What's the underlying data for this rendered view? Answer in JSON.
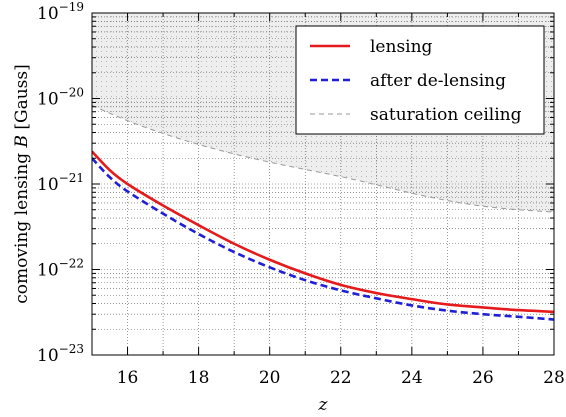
{
  "chart_data": {
    "type": "line",
    "title": "",
    "xlabel": "z",
    "ylabel": "comoving lensing B [Gauss]",
    "ylabel_parts": {
      "before": "comoving lensing ",
      "var": "B",
      "after": " [Gauss]"
    },
    "xlim": [
      15,
      28
    ],
    "ylim": [
      1e-23,
      1e-19
    ],
    "yscale": "log",
    "grid": true,
    "legend_position": "top-right",
    "x_ticks": [
      "16",
      "18",
      "20",
      "22",
      "24",
      "26",
      "28"
    ],
    "y_ticks": [
      {
        "base": "10",
        "exp": "−19",
        "value": 1e-19
      },
      {
        "base": "10",
        "exp": "−20",
        "value": 1e-20
      },
      {
        "base": "10",
        "exp": "−21",
        "value": 1e-21
      },
      {
        "base": "10",
        "exp": "−22",
        "value": 1e-22
      },
      {
        "base": "10",
        "exp": "−23",
        "value": 1e-23
      }
    ],
    "series": [
      {
        "name": "lensing",
        "color": "#e41a1c",
        "style": "solid",
        "x": [
          15,
          15.5,
          16,
          17,
          18,
          19,
          20,
          21,
          22,
          23,
          24,
          25,
          26,
          27,
          28
        ],
        "y": [
          2.4e-21,
          1.45e-21,
          1e-21,
          5.6e-22,
          3.3e-22,
          2e-22,
          1.3e-22,
          9e-23,
          6.6e-23,
          5.3e-23,
          4.5e-23,
          3.9e-23,
          3.6e-23,
          3.35e-23,
          3.2e-23
        ]
      },
      {
        "name": "after de-lensing",
        "color": "#1f1fd6",
        "style": "dashed",
        "x": [
          15,
          15.5,
          16,
          17,
          18,
          19,
          20,
          21,
          22,
          23,
          24,
          25,
          26,
          27,
          28
        ],
        "y": [
          2e-21,
          1.2e-21,
          8.2e-22,
          4.5e-22,
          2.6e-22,
          1.6e-22,
          1.06e-22,
          7.5e-23,
          5.7e-23,
          4.6e-23,
          3.8e-23,
          3.3e-23,
          3e-23,
          2.8e-23,
          2.6e-23
        ]
      },
      {
        "name": "saturation ceiling",
        "color": "#888888",
        "style": "thin-dashed",
        "x": [
          15,
          16,
          17,
          18,
          19,
          20,
          21,
          22,
          23,
          24,
          25,
          26,
          27,
          28
        ],
        "y": [
          8.3e-21,
          5.5e-21,
          3.9e-21,
          2.9e-21,
          2.25e-21,
          1.8e-21,
          1.48e-21,
          1.22e-21,
          9.8e-22,
          7.8e-22,
          6.4e-22,
          5.5e-22,
          5e-22,
          4.7e-22
        ]
      }
    ]
  }
}
